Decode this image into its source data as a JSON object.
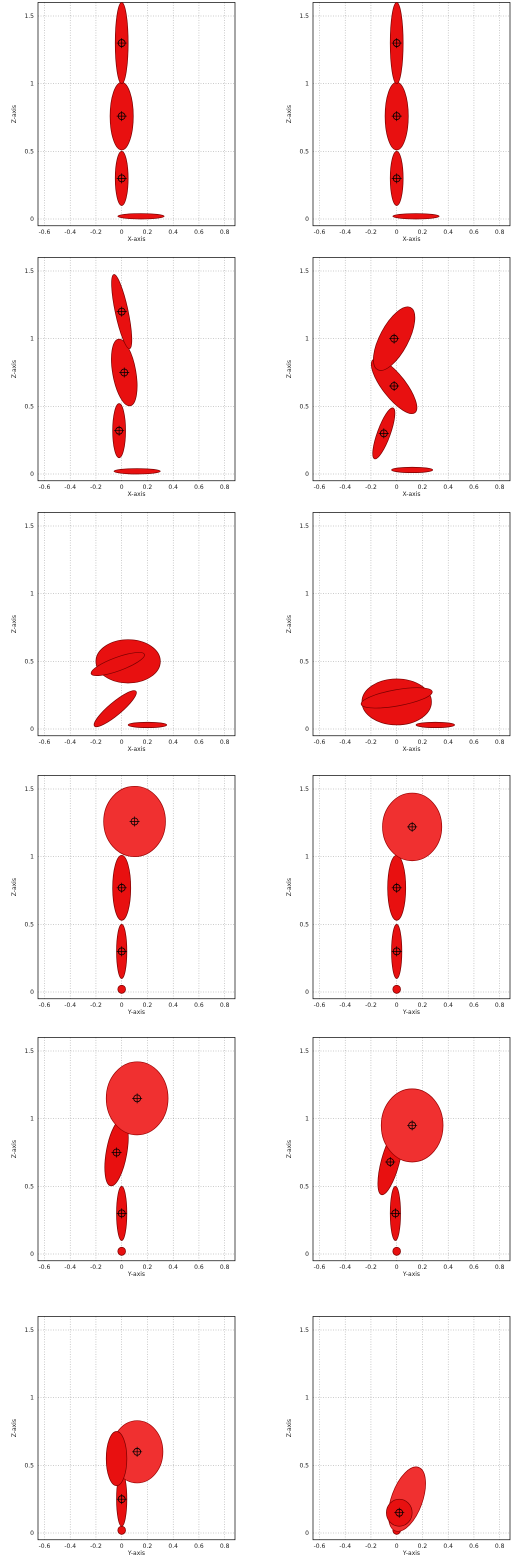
{
  "x_ticks": [
    -0.6,
    -0.4,
    -0.2,
    0,
    0.2,
    0.4,
    0.6,
    0.8
  ],
  "z_ticks": [
    0,
    0.5,
    1,
    1.5
  ],
  "z_label": "Z-axis",
  "panels": [
    {
      "x_label": "X-axis"
    },
    {
      "x_label": "X-axis"
    },
    {
      "x_label": "X-axis"
    },
    {
      "x_label": "X-axis"
    },
    {
      "x_label": "X-axis"
    },
    {
      "x_label": "X-axis"
    },
    {
      "x_label": "Y-axis"
    },
    {
      "x_label": "Y-axis"
    },
    {
      "x_label": "Y-axis"
    },
    {
      "x_label": "Y-axis"
    },
    {
      "x_label": "Y-axis"
    },
    {
      "x_label": "Y-axis"
    }
  ]
}
